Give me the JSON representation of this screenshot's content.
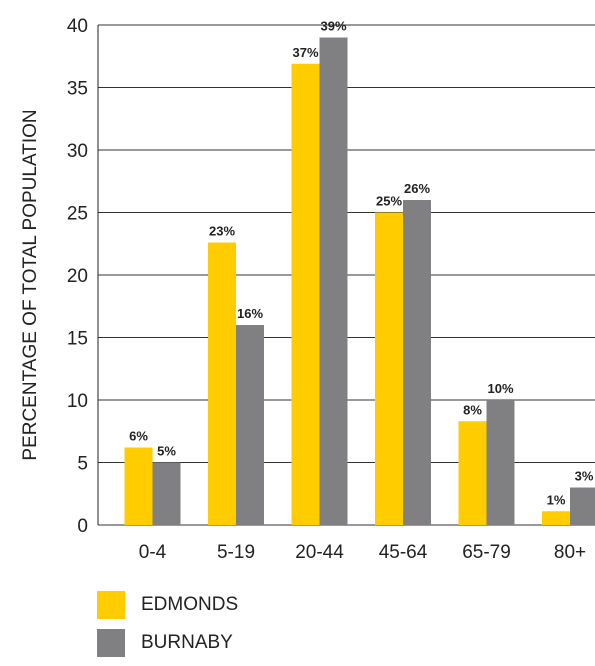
{
  "chart_data": {
    "type": "bar",
    "title": "",
    "xlabel": "",
    "ylabel": "PERCENTAGE OF TOTAL POPULATION",
    "ylim": [
      0,
      40
    ],
    "yticks": [
      0,
      5,
      10,
      15,
      20,
      25,
      30,
      35,
      40
    ],
    "grid": true,
    "legend_position": "bottom-left",
    "categories": [
      "0-4",
      "5-19",
      "20-44",
      "45-64",
      "65-79",
      "80+"
    ],
    "series": [
      {
        "name": "EDMONDS",
        "color": "#FFCC00",
        "values": [
          6.2,
          22.6,
          36.9,
          25.0,
          8.3,
          1.1
        ],
        "labels": [
          "6%",
          "23%",
          "37%",
          "25%",
          "8%",
          "1%"
        ]
      },
      {
        "name": "BURNABY",
        "color": "#808083",
        "values": [
          5.0,
          16.0,
          39.0,
          26.0,
          10.0,
          3.0
        ],
        "labels": [
          "5%",
          "16%",
          "39%",
          "26%",
          "10%",
          "3%"
        ]
      }
    ]
  }
}
